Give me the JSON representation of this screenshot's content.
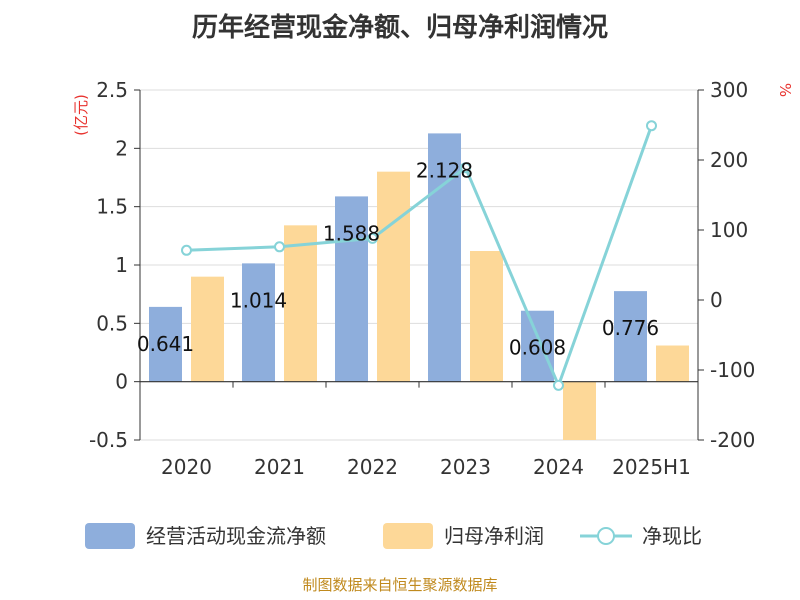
{
  "chart_data": {
    "type": "bar",
    "title": "历年经营现金净额、归母净利润情况",
    "categories": [
      "2020",
      "2021",
      "2022",
      "2023",
      "2024",
      "2025H1"
    ],
    "series": [
      {
        "name": "经营活动现金流净额",
        "kind": "bar",
        "axis": "left",
        "color": "#8eaedc",
        "values": [
          0.641,
          1.014,
          1.588,
          2.128,
          0.608,
          0.776
        ]
      },
      {
        "name": "归母净利润",
        "kind": "bar",
        "axis": "left",
        "color": "#fdd898",
        "values": [
          0.9,
          1.34,
          1.8,
          1.12,
          -0.5,
          0.31
        ]
      },
      {
        "name": "净现比",
        "kind": "line",
        "axis": "right",
        "color": "#86d3d8",
        "values": [
          71,
          76,
          88,
          189,
          -122,
          249
        ]
      }
    ],
    "data_labels": [
      "0.641",
      "1.014",
      "1.588",
      "2.128",
      "0.608",
      "0.776"
    ],
    "y_left": {
      "unit": "(亿元)",
      "min": -0.5,
      "max": 2.5,
      "ticks": [
        2.5,
        2,
        1.5,
        1,
        0.5,
        0,
        -0.5
      ]
    },
    "y_right": {
      "unit": "%",
      "min": -200,
      "max": 300,
      "ticks": [
        300,
        200,
        100,
        0,
        -100,
        -200
      ]
    },
    "grid": true,
    "legend_position": "bottom"
  },
  "source": "制图数据来自恒生聚源数据库"
}
